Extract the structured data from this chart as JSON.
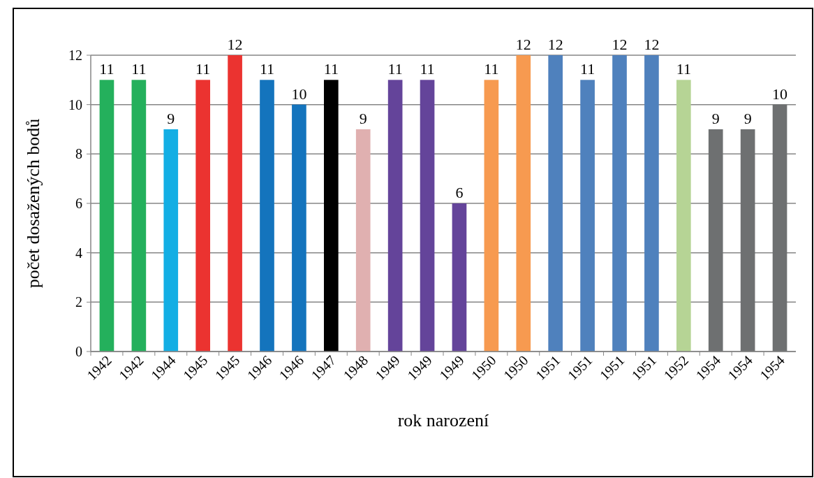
{
  "chart_data": {
    "type": "bar",
    "xlabel": "rok narození",
    "ylabel": "počet dosažených bodů",
    "categories": [
      "1942",
      "1942",
      "1944",
      "1945",
      "1945",
      "1946",
      "1946",
      "1947",
      "1948",
      "1949",
      "1949",
      "1949",
      "1950",
      "1950",
      "1951",
      "1951",
      "1951",
      "1951",
      "1952",
      "1954",
      "1954",
      "1954"
    ],
    "values": [
      11,
      11,
      9,
      11,
      12,
      11,
      10,
      11,
      9,
      11,
      11,
      6,
      11,
      12,
      12,
      11,
      12,
      12,
      11,
      9,
      9,
      10
    ],
    "colors": [
      "#24b05c",
      "#24b05c",
      "#13aee4",
      "#eb3330",
      "#eb3330",
      "#1474bd",
      "#1474bd",
      "#000000",
      "#e0b0b0",
      "#64449a",
      "#64449a",
      "#64449a",
      "#f79a50",
      "#f79a50",
      "#4f81bd",
      "#4f81bd",
      "#4f81bd",
      "#4f81bd",
      "#b6d495",
      "#6e7071",
      "#6e7071",
      "#6e7071"
    ],
    "ylim": [
      0,
      12
    ],
    "yticks": [
      0,
      2,
      4,
      6,
      8,
      10,
      12
    ],
    "grid": "y",
    "data_labels": true
  }
}
